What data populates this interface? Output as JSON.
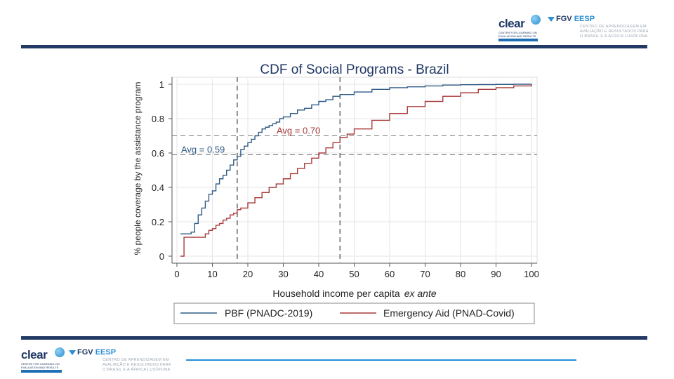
{
  "header": {
    "clear_logo": "clear",
    "clear_tagline": "CENTER FOR LEARNING ON EVALUATION AND RESULTS",
    "fgv_logo": "FGV",
    "eesp_logo": "EESP",
    "centro_lines": [
      "CENTRO DE APRENDIZAGEM EM",
      "AVALIAÇÃO E RESULTADOS PARA",
      "O BRASIL E A ÁFRICA LUSÓFONA"
    ]
  },
  "colors": {
    "navy": "#233a66",
    "pbf": "#2f5b86",
    "aid": "#a83a3a",
    "ref": "#6b6b6b",
    "accent": "#1e8fd6"
  },
  "chart_data": {
    "type": "line",
    "title": "CDF of Social Programs - Brazil",
    "xlabel": "Household income per capita",
    "xlabel_italic": "ex ante",
    "ylabel": "% people coverage by the assistance program",
    "xlim": [
      0,
      100
    ],
    "ylim": [
      0,
      1
    ],
    "xticks": [
      "0",
      "10",
      "20",
      "30",
      "40",
      "50",
      "60",
      "70",
      "80",
      "90",
      "100"
    ],
    "yticks": [
      "0",
      "0.2",
      "0.4",
      "0.6",
      "0.8",
      "1"
    ],
    "series": [
      {
        "name": "PBF (PNADC-2019)",
        "color": "#2f5b86",
        "x": [
          1,
          2,
          4,
          5,
          6,
          7,
          8,
          9,
          10,
          11,
          12,
          13,
          14,
          15,
          16,
          17,
          18,
          19,
          20,
          21,
          22,
          23,
          24,
          25,
          26,
          27,
          28,
          29,
          30,
          32,
          34,
          36,
          38,
          40,
          42,
          44,
          46,
          50,
          55,
          60,
          65,
          70,
          75,
          80,
          85,
          90,
          95,
          100
        ],
        "y": [
          0.13,
          0.13,
          0.14,
          0.19,
          0.24,
          0.28,
          0.32,
          0.36,
          0.38,
          0.42,
          0.45,
          0.47,
          0.5,
          0.53,
          0.56,
          0.58,
          0.62,
          0.64,
          0.66,
          0.68,
          0.7,
          0.72,
          0.74,
          0.75,
          0.76,
          0.77,
          0.78,
          0.8,
          0.81,
          0.83,
          0.85,
          0.86,
          0.88,
          0.9,
          0.91,
          0.93,
          0.94,
          0.955,
          0.97,
          0.98,
          0.985,
          0.99,
          0.995,
          0.997,
          0.998,
          0.999,
          1.0,
          1.0
        ]
      },
      {
        "name": "Emergency Aid (PNAD-Covid)",
        "color": "#a83a3a",
        "x": [
          1,
          2,
          4,
          7,
          8,
          9,
          10,
          11,
          12,
          13,
          14,
          15,
          16,
          17,
          18,
          20,
          22,
          24,
          26,
          28,
          30,
          32,
          34,
          36,
          38,
          40,
          42,
          44,
          46,
          48,
          50,
          55,
          60,
          65,
          70,
          75,
          80,
          85,
          90,
          95,
          100
        ],
        "y": [
          0.0,
          0.11,
          0.11,
          0.11,
          0.13,
          0.15,
          0.16,
          0.18,
          0.19,
          0.21,
          0.22,
          0.24,
          0.25,
          0.27,
          0.28,
          0.31,
          0.34,
          0.37,
          0.4,
          0.42,
          0.45,
          0.48,
          0.51,
          0.54,
          0.57,
          0.6,
          0.63,
          0.66,
          0.69,
          0.71,
          0.74,
          0.79,
          0.83,
          0.87,
          0.9,
          0.93,
          0.95,
          0.97,
          0.98,
          0.99,
          1.0
        ]
      }
    ],
    "reference_lines": [
      {
        "axis": "x",
        "value": 17,
        "label": ""
      },
      {
        "axis": "x",
        "value": 46,
        "label": ""
      },
      {
        "axis": "y",
        "value": 0.59,
        "label": "Avg = 0.59",
        "color": "#2f5b86"
      },
      {
        "axis": "y",
        "value": 0.7,
        "label": "Avg = 0.70",
        "color": "#a83a3a"
      }
    ],
    "legend": "bottom",
    "grid": true
  }
}
